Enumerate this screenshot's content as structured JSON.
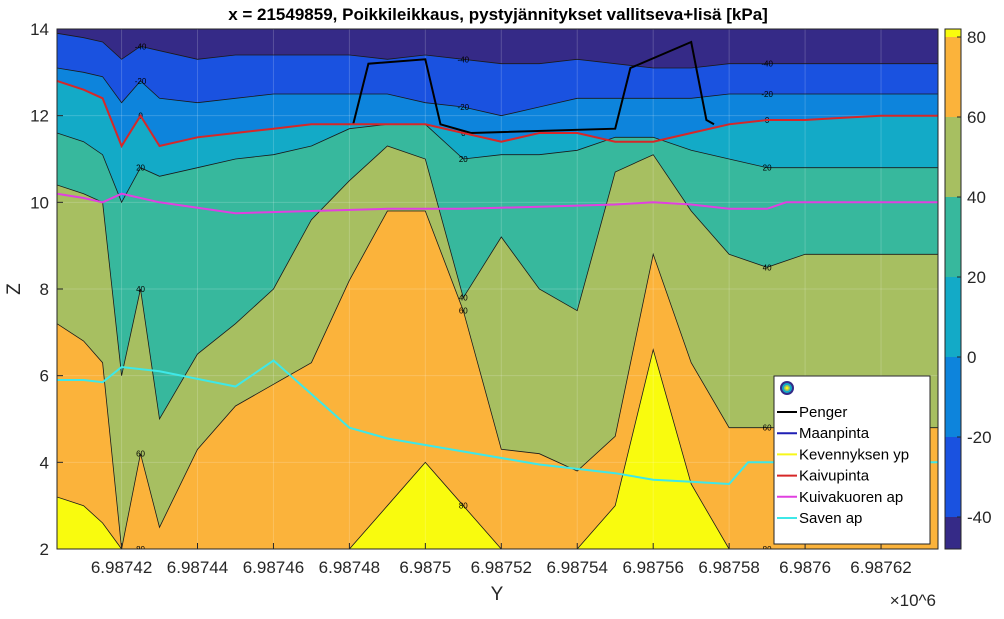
{
  "chart_data": {
    "type": "contour",
    "title": "x = 21549859, Poikkileikkaus, pystyjännitykset vallitseva+lisä [kPa]",
    "xlabel": "Y",
    "ylabel": "Z",
    "x_multiplier": "×10^6",
    "xlim": [
      6.987403,
      6.987635
    ],
    "ylim": [
      2,
      14
    ],
    "x_ticks": [
      6.98742,
      6.98744,
      6.98746,
      6.98748,
      6.9875,
      6.98752,
      6.98754,
      6.98756,
      6.98758,
      6.9876,
      6.98762
    ],
    "x_tick_labels": [
      "6.98742",
      "6.98744",
      "6.98746",
      "6.98748",
      "6.9875",
      "6.98752",
      "6.98754",
      "6.98756",
      "6.98758",
      "6.9876",
      "6.98762"
    ],
    "y_ticks": [
      2,
      4,
      6,
      8,
      10,
      12,
      14
    ],
    "y_tick_labels": [
      "2",
      "4",
      "6",
      "8",
      "10",
      "12",
      "14"
    ],
    "colorbar": {
      "range": [
        -48,
        82
      ],
      "ticks": [
        80,
        60,
        40,
        20,
        0,
        -20,
        -40
      ],
      "tick_labels": [
        "80",
        "60",
        "40",
        "20",
        "0",
        "-20",
        "-40"
      ]
    },
    "contour_levels": [
      -40,
      -20,
      0,
      20,
      40,
      60,
      80
    ],
    "band_colors": [
      "#352a87",
      "#1a52e0",
      "#0d84dc",
      "#13aac7",
      "#37b89d",
      "#a7bf61",
      "#fbb33b",
      "#f9fb0e"
    ],
    "x_sample": [
      6.987403,
      6.98741,
      6.987415,
      6.98742,
      6.987425,
      6.98743,
      6.98744,
      6.98745,
      6.98746,
      6.98747,
      6.98748,
      6.98749,
      6.9875,
      6.98751,
      6.98752,
      6.98753,
      6.98754,
      6.98755,
      6.98756,
      6.98757,
      6.98758,
      6.98759,
      6.9876,
      6.98761,
      6.98762,
      6.987635
    ],
    "contour_lines": [
      {
        "level": 80,
        "z": [
          3.2,
          3.0,
          2.6,
          2.0,
          2.0,
          2.0,
          2.0,
          2.0,
          2.0,
          2.0,
          2.0,
          3.0,
          4.0,
          3.0,
          2.0,
          2.0,
          2.0,
          3.0,
          6.6,
          3.5,
          2.0,
          2.0,
          2.0,
          2.0,
          2.0,
          2.0
        ]
      },
      {
        "level": 60,
        "z": [
          7.2,
          6.8,
          6.3,
          2.0,
          4.2,
          2.5,
          4.3,
          5.3,
          5.8,
          6.3,
          8.2,
          9.8,
          9.8,
          7.5,
          4.3,
          4.2,
          3.8,
          4.6,
          8.8,
          6.3,
          4.8,
          4.8,
          4.8,
          4.8,
          4.8,
          4.8
        ]
      },
      {
        "level": 40,
        "z": [
          10.4,
          10.2,
          10.0,
          6.0,
          8.0,
          5.0,
          6.5,
          7.2,
          8.0,
          9.6,
          10.5,
          11.3,
          11.0,
          7.8,
          9.2,
          8.0,
          7.5,
          10.7,
          11.1,
          9.8,
          8.8,
          8.5,
          8.8,
          8.8,
          8.8,
          8.8
        ]
      },
      {
        "level": 20,
        "z": [
          11.6,
          11.4,
          11.1,
          10.0,
          10.8,
          10.6,
          10.8,
          11.0,
          11.1,
          11.3,
          11.7,
          11.8,
          11.8,
          11.0,
          11.1,
          11.1,
          11.2,
          11.5,
          11.5,
          11.2,
          11.0,
          10.8,
          10.8,
          10.8,
          10.8,
          10.8
        ]
      },
      {
        "level": 0,
        "z": [
          12.8,
          12.6,
          12.4,
          11.3,
          12.0,
          11.3,
          11.5,
          11.6,
          11.7,
          11.8,
          11.8,
          11.8,
          11.8,
          11.6,
          11.4,
          11.6,
          11.6,
          11.4,
          11.4,
          11.6,
          11.8,
          11.9,
          11.9,
          11.95,
          12.0,
          12.0
        ]
      },
      {
        "level": -20,
        "z": [
          13.1,
          13.0,
          12.9,
          12.3,
          12.8,
          12.4,
          12.3,
          12.4,
          12.5,
          12.5,
          12.5,
          12.5,
          12.3,
          12.2,
          12.0,
          12.2,
          12.4,
          12.4,
          12.4,
          12.4,
          12.5,
          12.5,
          12.5,
          12.5,
          12.5,
          12.5
        ]
      },
      {
        "level": -40,
        "z": [
          13.9,
          13.8,
          13.7,
          13.3,
          13.6,
          13.5,
          13.3,
          13.4,
          13.4,
          13.4,
          13.4,
          13.3,
          13.4,
          13.3,
          13.2,
          13.2,
          13.3,
          13.2,
          13.1,
          13.1,
          13.2,
          13.2,
          13.2,
          13.2,
          13.2,
          13.2
        ]
      }
    ],
    "series": [
      {
        "name": "Penger",
        "color": "#000000",
        "x": [
          6.987481,
          6.987485,
          6.9875,
          6.987504,
          6.987512,
          6.98755,
          6.987554,
          6.98757,
          6.987574,
          6.987576
        ],
        "y": [
          11.8,
          13.2,
          13.3,
          11.8,
          11.6,
          11.7,
          13.1,
          13.7,
          11.9,
          11.8
        ]
      },
      {
        "name": "Maanpinta",
        "color": "#1f1fb4",
        "x": [],
        "y": []
      },
      {
        "name": "Kevennyksen yp",
        "color": "#f7f71a",
        "x": [],
        "y": []
      },
      {
        "name": "Kaivupinta",
        "color": "#d62728",
        "x": [
          6.987403,
          6.98741,
          6.987415,
          6.98742,
          6.987425,
          6.98743,
          6.98744,
          6.98745,
          6.98746,
          6.98747,
          6.98748,
          6.98749,
          6.9875,
          6.98751,
          6.98752,
          6.98753,
          6.98754,
          6.98755,
          6.98756,
          6.98757,
          6.98758,
          6.98759,
          6.9876,
          6.98761,
          6.98762,
          6.987635
        ],
        "y": [
          12.8,
          12.6,
          12.4,
          11.3,
          12.0,
          11.3,
          11.5,
          11.6,
          11.7,
          11.8,
          11.8,
          11.8,
          11.8,
          11.6,
          11.4,
          11.6,
          11.6,
          11.4,
          11.4,
          11.6,
          11.8,
          11.9,
          11.9,
          11.95,
          12.0,
          12.0
        ]
      },
      {
        "name": "Kuivakuoren ap",
        "color": "#e040e0",
        "x": [
          6.987403,
          6.98741,
          6.987415,
          6.98742,
          6.98743,
          6.98745,
          6.98747,
          6.98749,
          6.98751,
          6.98753,
          6.98755,
          6.98756,
          6.98757,
          6.98758,
          6.98759,
          6.987595,
          6.9876,
          6.98762,
          6.987635
        ],
        "y": [
          10.2,
          10.1,
          10.0,
          10.2,
          10.0,
          9.75,
          9.8,
          9.85,
          9.85,
          9.9,
          9.95,
          10.0,
          9.95,
          9.85,
          9.85,
          10.0,
          10.0,
          10.0,
          10.0
        ]
      },
      {
        "name": "Saven ap",
        "color": "#3ee8e8",
        "x": [
          6.987403,
          6.98741,
          6.987415,
          6.98742,
          6.98743,
          6.98745,
          6.98746,
          6.98748,
          6.98749,
          6.98751,
          6.98753,
          6.98755,
          6.98756,
          6.98757,
          6.98758,
          6.987585,
          6.9876,
          6.98762,
          6.987635
        ],
        "y": [
          5.9,
          5.9,
          5.85,
          6.2,
          6.1,
          5.75,
          6.35,
          4.8,
          4.55,
          4.25,
          3.95,
          3.75,
          3.6,
          3.55,
          3.5,
          4.0,
          4.0,
          4.0,
          4.0
        ]
      }
    ],
    "legend": {
      "placement": "bottom-right",
      "entries": [
        "Penger",
        "Maanpinta",
        "Kevennyksen yp",
        "Kaivupinta",
        "Kuivakuoren ap",
        "Saven ap"
      ]
    }
  }
}
